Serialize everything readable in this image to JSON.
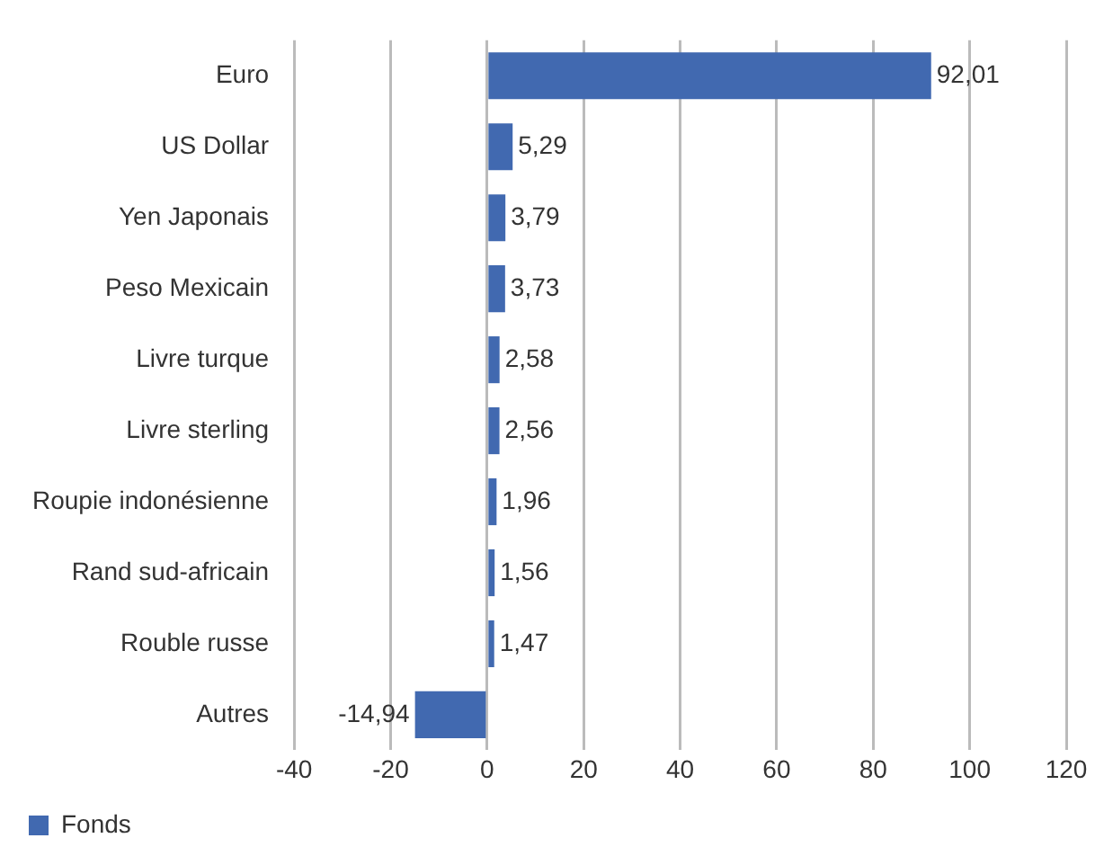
{
  "chart_data": {
    "type": "bar",
    "orientation": "horizontal",
    "categories": [
      "Euro",
      "US Dollar",
      "Yen Japonais",
      "Peso Mexicain",
      "Livre turque",
      "Livre sterling",
      "Roupie indonésienne",
      "Rand sud-africain",
      "Rouble russe",
      "Autres"
    ],
    "series": [
      {
        "name": "Fonds",
        "color": "#4169b0",
        "values": [
          92.01,
          5.29,
          3.79,
          3.73,
          2.58,
          2.56,
          1.96,
          1.56,
          1.47,
          -14.94
        ],
        "value_labels": [
          "92,01",
          "5,29",
          "3,79",
          "3,73",
          "2,58",
          "2,56",
          "1,96",
          "1,56",
          "1,47",
          "-14,94"
        ]
      }
    ],
    "xlim": [
      -40,
      120
    ],
    "xticks": [
      -40,
      -20,
      0,
      20,
      40,
      60,
      80,
      100,
      120
    ],
    "grid": "x",
    "legend": "bottom left"
  }
}
